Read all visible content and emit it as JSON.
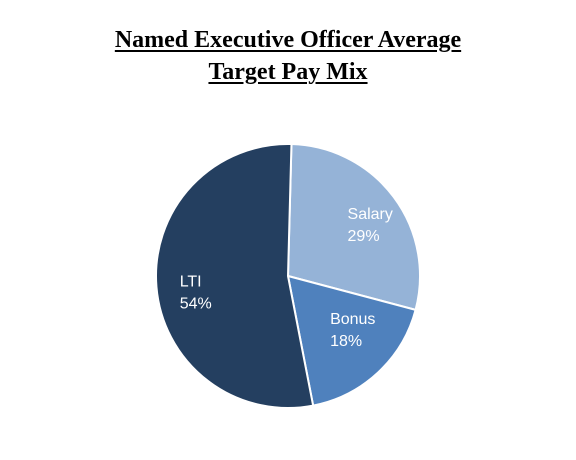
{
  "chart_data": {
    "type": "pie",
    "title_lines": [
      "Named Executive Officer Average ",
      "Target Pay Mix"
    ],
    "slices": [
      {
        "name": "Salary",
        "value": 29,
        "label": "29%",
        "color": "#95b3d7"
      },
      {
        "name": "Bonus",
        "value": 18,
        "label": "18%",
        "color": "#4f81bd"
      },
      {
        "name": "LTI",
        "value": 54,
        "label": "54%",
        "color": "#243f60"
      }
    ],
    "legend": "none",
    "slice_border_color": "#ffffff"
  }
}
